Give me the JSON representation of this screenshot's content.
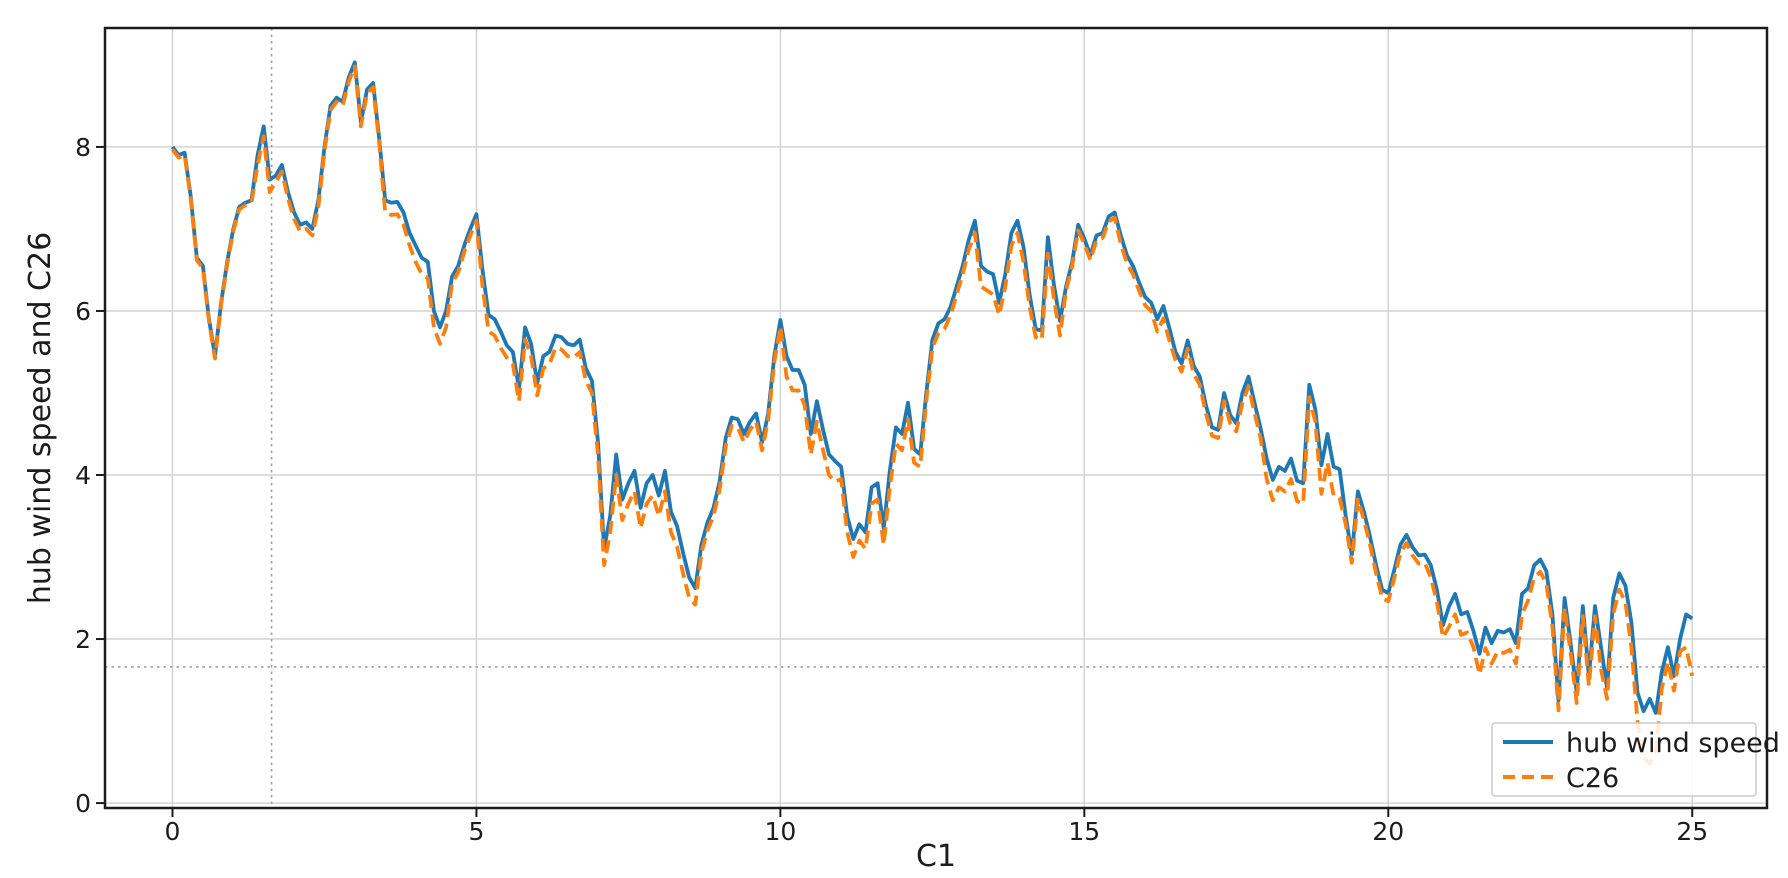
{
  "figure": {
    "background": "#ffffff"
  },
  "chart_data": {
    "type": "line",
    "title": "",
    "xlabel": "C1",
    "ylabel": "hub wind speed and C26",
    "xlim": [
      -1.11,
      26.23
    ],
    "ylim": [
      -0.06,
      9.45
    ],
    "x_ticks": [
      0,
      5,
      10,
      15,
      20,
      25
    ],
    "y_ticks": [
      0,
      2,
      4,
      6,
      8
    ],
    "grid": true,
    "grid_color": "#d4d4d4",
    "spine_color": "#1c1c1c",
    "reference_lines": {
      "vline_x": 1.63,
      "hline_y": 1.66,
      "style": "dotted",
      "color": "#a0a0a0"
    },
    "legend": {
      "position": "lower right",
      "border_color": "#cccccc",
      "background": "#ffffff"
    },
    "x_start": 0.0,
    "x_step": 0.1,
    "series": [
      {
        "name": "hub wind speed",
        "color": "#1f77b4",
        "style": "solid",
        "values": [
          8.0,
          7.9,
          7.93,
          7.4,
          6.65,
          6.55,
          5.9,
          5.45,
          6.1,
          6.6,
          7.0,
          7.27,
          7.32,
          7.35,
          7.9,
          8.25,
          7.6,
          7.65,
          7.78,
          7.45,
          7.2,
          7.05,
          7.08,
          7.0,
          7.35,
          8.0,
          8.5,
          8.6,
          8.55,
          8.85,
          9.03,
          8.3,
          8.7,
          8.78,
          8.1,
          7.35,
          7.32,
          7.33,
          7.2,
          6.95,
          6.8,
          6.65,
          6.6,
          6.0,
          5.8,
          6.0,
          6.42,
          6.55,
          6.8,
          7.0,
          7.18,
          6.5,
          5.95,
          5.9,
          5.75,
          5.58,
          5.5,
          5.05,
          5.8,
          5.6,
          5.12,
          5.45,
          5.5,
          5.7,
          5.68,
          5.6,
          5.58,
          5.65,
          5.3,
          5.15,
          4.4,
          3.1,
          3.5,
          4.25,
          3.7,
          3.9,
          4.05,
          3.6,
          3.9,
          4.0,
          3.75,
          4.05,
          3.55,
          3.38,
          3.05,
          2.75,
          2.62,
          3.15,
          3.42,
          3.6,
          3.92,
          4.45,
          4.7,
          4.68,
          4.5,
          4.65,
          4.75,
          4.4,
          4.75,
          5.45,
          5.89,
          5.45,
          5.28,
          5.28,
          5.1,
          4.5,
          4.9,
          4.56,
          4.25,
          4.17,
          4.1,
          3.5,
          3.22,
          3.4,
          3.3,
          3.85,
          3.9,
          3.35,
          4.05,
          4.58,
          4.5,
          4.88,
          4.32,
          4.25,
          5.0,
          5.65,
          5.85,
          5.9,
          6.05,
          6.3,
          6.55,
          6.87,
          7.1,
          6.55,
          6.48,
          6.45,
          6.1,
          6.45,
          6.95,
          7.1,
          6.78,
          6.2,
          5.78,
          5.76,
          6.9,
          6.32,
          5.88,
          6.3,
          6.6,
          7.05,
          6.88,
          6.68,
          6.92,
          6.95,
          7.15,
          7.2,
          6.92,
          6.68,
          6.55,
          6.35,
          6.17,
          6.1,
          5.9,
          6.06,
          5.79,
          5.5,
          5.36,
          5.64,
          5.33,
          5.2,
          4.85,
          4.58,
          4.55,
          5.0,
          4.73,
          4.63,
          5.0,
          5.2,
          4.88,
          4.57,
          4.2,
          3.94,
          4.1,
          4.05,
          4.2,
          3.93,
          3.9,
          5.1,
          4.8,
          4.12,
          4.5,
          4.1,
          4.07,
          3.5,
          3.03,
          3.8,
          3.55,
          3.25,
          2.9,
          2.6,
          2.56,
          2.85,
          3.15,
          3.27,
          3.12,
          3.02,
          3.03,
          2.9,
          2.6,
          2.17,
          2.4,
          2.55,
          2.3,
          2.33,
          2.1,
          1.82,
          2.14,
          1.95,
          2.1,
          2.08,
          2.12,
          1.95,
          2.55,
          2.62,
          2.9,
          2.97,
          2.83,
          2.3,
          1.25,
          2.5,
          1.95,
          1.35,
          2.4,
          1.55,
          2.4,
          1.9,
          1.4,
          2.5,
          2.8,
          2.65,
          2.2,
          1.35,
          1.12,
          1.27,
          1.1,
          1.6,
          1.9,
          1.55,
          2.0,
          2.3,
          2.25
        ]
      },
      {
        "name": "C26",
        "color": "#ff7f0e",
        "style": "dashed",
        "values": [
          7.97,
          7.87,
          7.9,
          7.37,
          6.62,
          6.52,
          5.87,
          5.42,
          6.07,
          6.57,
          6.97,
          7.24,
          7.29,
          7.32,
          7.78,
          8.13,
          7.45,
          7.57,
          7.7,
          7.37,
          7.12,
          6.97,
          7.0,
          6.92,
          7.27,
          7.95,
          8.45,
          8.55,
          8.5,
          8.8,
          8.98,
          8.25,
          8.65,
          8.73,
          8.05,
          7.2,
          7.17,
          7.18,
          7.05,
          6.8,
          6.6,
          6.45,
          6.4,
          5.8,
          5.6,
          5.8,
          6.34,
          6.47,
          6.72,
          6.92,
          7.1,
          6.3,
          5.75,
          5.7,
          5.55,
          5.43,
          5.35,
          4.9,
          5.65,
          5.45,
          4.97,
          5.3,
          5.35,
          5.55,
          5.53,
          5.45,
          5.43,
          5.5,
          5.15,
          5.0,
          4.25,
          2.9,
          3.3,
          4.0,
          3.45,
          3.65,
          3.8,
          3.35,
          3.65,
          3.75,
          3.5,
          3.8,
          3.3,
          3.13,
          2.8,
          2.5,
          2.42,
          3.05,
          3.32,
          3.5,
          3.82,
          4.35,
          4.6,
          4.58,
          4.4,
          4.55,
          4.65,
          4.3,
          4.67,
          5.37,
          5.81,
          5.2,
          5.03,
          5.03,
          4.85,
          4.25,
          4.65,
          4.31,
          4.0,
          3.92,
          3.95,
          3.3,
          3.0,
          3.2,
          3.1,
          3.65,
          3.7,
          3.15,
          3.85,
          4.38,
          4.3,
          4.68,
          4.15,
          4.1,
          4.9,
          5.55,
          5.73,
          5.78,
          5.95,
          6.2,
          6.45,
          6.75,
          6.95,
          6.3,
          6.25,
          6.2,
          5.95,
          6.3,
          6.8,
          6.95,
          6.6,
          6.05,
          5.68,
          5.65,
          6.7,
          6.15,
          5.7,
          6.25,
          6.55,
          6.98,
          6.82,
          6.62,
          6.86,
          6.89,
          7.09,
          7.14,
          6.82,
          6.58,
          6.45,
          6.25,
          6.07,
          6.0,
          5.75,
          5.91,
          5.64,
          5.4,
          5.26,
          5.54,
          5.23,
          5.1,
          4.75,
          4.48,
          4.45,
          4.9,
          4.63,
          4.53,
          4.88,
          5.08,
          4.76,
          4.45,
          3.95,
          3.69,
          3.85,
          3.8,
          3.95,
          3.68,
          3.65,
          4.95,
          4.65,
          3.77,
          4.15,
          3.75,
          3.72,
          3.4,
          2.93,
          3.7,
          3.45,
          3.15,
          2.8,
          2.5,
          2.46,
          2.75,
          3.05,
          3.17,
          3.02,
          2.92,
          2.93,
          2.75,
          2.45,
          2.02,
          2.15,
          2.3,
          2.05,
          2.08,
          1.9,
          1.57,
          1.89,
          1.7,
          1.85,
          1.83,
          1.87,
          1.7,
          2.3,
          2.47,
          2.75,
          2.82,
          2.68,
          2.15,
          1.13,
          2.38,
          1.83,
          1.22,
          2.28,
          1.43,
          2.28,
          1.63,
          1.27,
          2.3,
          2.6,
          2.45,
          1.9,
          1.0,
          0.55,
          0.48,
          0.6,
          1.4,
          1.72,
          1.37,
          1.85,
          1.9,
          1.55
        ]
      }
    ]
  }
}
